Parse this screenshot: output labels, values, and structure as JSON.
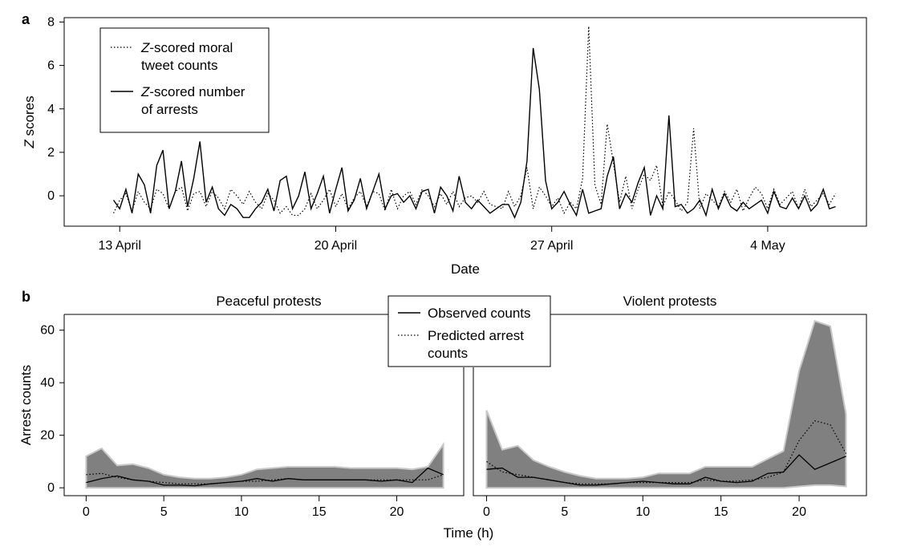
{
  "figure": {
    "panel_a_label": "a",
    "panel_b_label": "b"
  },
  "chart_data": [
    {
      "type": "line",
      "panel": "a",
      "xlabel": "Date",
      "ylabel": "Z scores",
      "ylabel_italic": "Z",
      "ylabel_rest": " scores",
      "x_ticks": [
        "13 April",
        "20 April",
        "27 April",
        "4 May"
      ],
      "x_tick_days": [
        13,
        20,
        27,
        34
      ],
      "xlim_days": [
        11.2,
        37.2
      ],
      "ylim": [
        -1.4,
        8.2
      ],
      "y_ticks": [
        0,
        2,
        4,
        6,
        8
      ],
      "legend": {
        "placement": "top-left",
        "moral_italic": "Z",
        "moral_line1": "-scored moral",
        "moral_line2": "tweet counts",
        "arrest_italic": "Z",
        "arrest_line1": "-scored number",
        "arrest_line2": "of arrests"
      },
      "series": [
        {
          "name": "Z-scored moral tweet counts",
          "style": "dotted",
          "x_days": [
            12.8,
            13.0,
            13.2,
            13.4,
            13.6,
            13.8,
            14.0,
            14.2,
            14.4,
            14.6,
            14.8,
            15.0,
            15.2,
            15.4,
            15.6,
            15.8,
            16.0,
            16.2,
            16.4,
            16.6,
            16.8,
            17.0,
            17.2,
            17.4,
            17.6,
            17.8,
            18.0,
            18.2,
            18.4,
            18.6,
            18.8,
            19.0,
            19.2,
            19.4,
            19.6,
            19.8,
            20.0,
            20.2,
            20.4,
            20.6,
            20.8,
            21.0,
            21.2,
            21.4,
            21.6,
            21.8,
            22.0,
            22.2,
            22.4,
            22.6,
            22.8,
            23.0,
            23.2,
            23.4,
            23.6,
            23.8,
            24.0,
            24.2,
            24.4,
            24.6,
            24.8,
            25.0,
            25.2,
            25.4,
            25.6,
            25.8,
            26.0,
            26.2,
            26.4,
            26.6,
            26.8,
            27.0,
            27.2,
            27.4,
            27.6,
            27.8,
            28.0,
            28.2,
            28.4,
            28.6,
            28.8,
            29.0,
            29.2,
            29.4,
            29.6,
            29.8,
            30.0,
            30.2,
            30.4,
            30.6,
            30.8,
            31.0,
            31.2,
            31.4,
            31.6,
            31.8,
            32.0,
            32.2,
            32.4,
            32.6,
            32.8,
            33.0,
            33.2,
            33.4,
            33.6,
            33.8,
            34.0,
            34.2,
            34.4,
            34.6,
            34.8,
            35.0,
            35.2,
            35.4,
            35.6,
            35.8,
            36.0,
            36.2
          ],
          "values": [
            -0.8,
            -0.2,
            0.1,
            -0.7,
            0.2,
            -0.3,
            -0.6,
            0.3,
            0.1,
            -0.6,
            0.2,
            0.4,
            -0.7,
            0.1,
            0.2,
            -0.5,
            0.2,
            -0.1,
            -0.6,
            0.3,
            0.0,
            -0.4,
            0.2,
            -0.3,
            -0.6,
            0.1,
            -0.2,
            -0.8,
            -0.5,
            -0.9,
            -0.9,
            -0.6,
            0.1,
            -0.6,
            -0.2,
            0.3,
            -0.5,
            0.1,
            -0.6,
            -0.1,
            0.2,
            -0.5,
            0.2,
            0.1,
            -0.7,
            0.3,
            -0.6,
            0.0,
            0.2,
            -0.4,
            0.3,
            0.0,
            -0.5,
            0.1,
            -0.4,
            0.2,
            -0.5,
            -0.1,
            0.0,
            -0.3,
            0.2,
            -0.4,
            -0.5,
            -0.6,
            0.2,
            -0.5,
            0.0,
            1.3,
            -0.6,
            0.4,
            0.0,
            -0.5,
            -0.1,
            -0.8,
            -0.3,
            -0.6,
            0.8,
            7.8,
            0.5,
            -0.4,
            3.3,
            1.5,
            -0.3,
            0.9,
            -0.6,
            0.3,
            1.0,
            0.7,
            1.4,
            -0.5,
            0.2,
            -0.2,
            -0.7,
            -0.3,
            3.1,
            -0.6,
            0.1,
            -0.2,
            -0.5,
            0.2,
            -0.3,
            0.3,
            -0.7,
            -0.1,
            0.4,
            0.1,
            -0.6,
            0.3,
            -0.4,
            -0.1,
            0.2,
            -0.6,
            0.3,
            -0.5,
            -0.2,
            0.1,
            -0.4,
            0.1
          ]
        },
        {
          "name": "Z-scored number of arrests",
          "style": "solid",
          "x_days": [
            12.8,
            13.0,
            13.2,
            13.4,
            13.6,
            13.8,
            14.0,
            14.2,
            14.4,
            14.6,
            14.8,
            15.0,
            15.2,
            15.4,
            15.6,
            15.8,
            16.0,
            16.2,
            16.4,
            16.6,
            16.8,
            17.0,
            17.2,
            17.4,
            17.6,
            17.8,
            18.0,
            18.2,
            18.4,
            18.6,
            18.8,
            19.0,
            19.2,
            19.4,
            19.6,
            19.8,
            20.0,
            20.2,
            20.4,
            20.6,
            20.8,
            21.0,
            21.2,
            21.4,
            21.6,
            21.8,
            22.0,
            22.2,
            22.4,
            22.6,
            22.8,
            23.0,
            23.2,
            23.4,
            23.6,
            23.8,
            24.0,
            24.2,
            24.4,
            24.6,
            24.8,
            25.0,
            25.2,
            25.4,
            25.6,
            25.8,
            26.0,
            26.2,
            26.4,
            26.6,
            26.8,
            27.0,
            27.2,
            27.4,
            27.6,
            27.8,
            28.0,
            28.2,
            28.4,
            28.6,
            28.8,
            29.0,
            29.2,
            29.4,
            29.6,
            29.8,
            30.0,
            30.2,
            30.4,
            30.6,
            30.8,
            31.0,
            31.2,
            31.4,
            31.6,
            31.8,
            32.0,
            32.2,
            32.4,
            32.6,
            32.8,
            33.0,
            33.2,
            33.4,
            33.6,
            33.8,
            34.0,
            34.2,
            34.4,
            34.6,
            34.8,
            35.0,
            35.2,
            35.4,
            35.6,
            35.8,
            36.0,
            36.2
          ],
          "values": [
            -0.2,
            -0.6,
            0.3,
            -0.8,
            1.0,
            0.5,
            -0.8,
            1.4,
            2.1,
            -0.6,
            0.2,
            1.6,
            -0.5,
            0.8,
            2.5,
            -0.3,
            0.4,
            -0.6,
            -0.9,
            -0.4,
            -0.6,
            -1.0,
            -1.0,
            -0.6,
            -0.3,
            0.3,
            -0.7,
            0.7,
            0.9,
            -0.6,
            0.0,
            1.1,
            -0.6,
            0.1,
            0.9,
            -0.8,
            0.3,
            1.3,
            -0.7,
            -0.2,
            0.8,
            -0.6,
            0.2,
            1.0,
            -0.6,
            0.0,
            0.1,
            -0.3,
            0.0,
            -0.6,
            0.2,
            0.3,
            -0.8,
            0.4,
            0.0,
            -0.7,
            0.9,
            -0.3,
            -0.6,
            -0.2,
            -0.5,
            -0.8,
            -0.6,
            -0.4,
            -0.4,
            -1.0,
            -0.3,
            1.6,
            6.8,
            4.9,
            0.7,
            -0.6,
            -0.3,
            0.2,
            -0.4,
            -0.9,
            0.3,
            -0.8,
            -0.7,
            -0.6,
            0.9,
            1.8,
            -0.6,
            0.1,
            -0.3,
            0.6,
            1.3,
            -0.9,
            0.0,
            -0.6,
            3.7,
            -0.5,
            -0.4,
            -0.8,
            -0.6,
            -0.2,
            -0.9,
            0.3,
            -0.6,
            0.1,
            -0.5,
            -0.7,
            -0.3,
            -0.6,
            -0.4,
            -0.2,
            -0.8,
            0.2,
            -0.5,
            -0.6,
            -0.1,
            -0.6,
            0.0,
            -0.7,
            -0.4,
            0.3,
            -0.6,
            -0.5
          ]
        }
      ]
    },
    {
      "type": "area",
      "panel": "b-left",
      "title": "Peaceful protests",
      "ylabel": "Arrest counts",
      "xlim": [
        -1.0,
        24.0
      ],
      "ylim": [
        -3,
        66
      ],
      "x_ticks": [
        0,
        5,
        10,
        15,
        20
      ],
      "y_ticks": [
        0,
        20,
        40,
        60
      ],
      "x": [
        0,
        1,
        2,
        3,
        4,
        5,
        6,
        7,
        8,
        9,
        10,
        11,
        12,
        13,
        14,
        15,
        16,
        17,
        18,
        19,
        20,
        21,
        22,
        23
      ],
      "series": [
        {
          "name": "Observed counts",
          "style": "solid",
          "values": [
            2,
            3.5,
            4.5,
            3,
            2.5,
            1,
            1,
            0.8,
            1.5,
            2,
            2.5,
            3.5,
            2.5,
            3.5,
            3,
            3,
            3,
            3,
            3,
            2.5,
            3,
            2,
            7.5,
            5
          ]
        },
        {
          "name": "Predicted arrest counts",
          "style": "dotted",
          "values": [
            5,
            5.5,
            4,
            3,
            2.5,
            2,
            1.5,
            1.5,
            1.5,
            2,
            2.5,
            2.5,
            3,
            3.5,
            3,
            3,
            3,
            3,
            3,
            3,
            3,
            3,
            3,
            5
          ]
        }
      ],
      "ci_upper": [
        12,
        15,
        8.5,
        9,
        7.5,
        5,
        4,
        3.5,
        3.5,
        4,
        5,
        7,
        7.5,
        8,
        8,
        8,
        8,
        7.5,
        7.5,
        7.5,
        7.5,
        7,
        8,
        16.5
      ],
      "ci_lower": [
        0,
        0,
        0,
        0,
        0,
        0,
        0,
        0,
        0,
        0,
        0,
        0,
        0,
        0,
        0,
        0,
        0,
        0,
        0,
        0,
        0,
        0,
        0,
        0
      ]
    },
    {
      "type": "area",
      "panel": "b-right",
      "title": "Violent protests",
      "xlabel": "Time (h)",
      "xlim": [
        -1.0,
        24.0
      ],
      "ylim": [
        -3,
        66
      ],
      "x_ticks": [
        0,
        5,
        10,
        15,
        20
      ],
      "x": [
        0,
        1,
        2,
        3,
        4,
        5,
        6,
        7,
        8,
        9,
        10,
        11,
        12,
        13,
        14,
        15,
        16,
        17,
        18,
        19,
        20,
        21,
        22,
        23
      ],
      "series": [
        {
          "name": "Observed counts",
          "style": "solid",
          "values": [
            7,
            7.5,
            4,
            4,
            3,
            2,
            1,
            1,
            1.5,
            2,
            2.5,
            2,
            1.5,
            1.5,
            4,
            2.5,
            2,
            2.5,
            5.5,
            6,
            12.5,
            7,
            9.5,
            12
          ]
        },
        {
          "name": "Predicted arrest counts",
          "style": "dotted",
          "values": [
            10,
            6,
            5,
            4,
            3,
            2,
            1.5,
            1.5,
            1.5,
            2,
            2,
            2,
            2,
            2,
            3,
            2.5,
            2.5,
            3,
            4,
            6,
            18,
            25.5,
            24,
            13
          ]
        }
      ],
      "ci_upper": [
        29.5,
        14.5,
        16,
        10.5,
        8,
        6,
        4.5,
        3.5,
        3.5,
        3.5,
        4,
        5.5,
        5.5,
        5.5,
        8,
        8,
        8,
        8,
        11,
        14,
        44.5,
        63.5,
        61.5,
        28
      ],
      "ci_lower": [
        0,
        0,
        0,
        0,
        0,
        0,
        0,
        0,
        0,
        0,
        0,
        0,
        0,
        0,
        0,
        0,
        0,
        0,
        0,
        0,
        0.5,
        1,
        1,
        0.5
      ]
    }
  ],
  "legend_b": {
    "placement": "top-center",
    "observed": "Observed counts",
    "predicted_line1": "Predicted arrest",
    "predicted_line2": "counts"
  }
}
